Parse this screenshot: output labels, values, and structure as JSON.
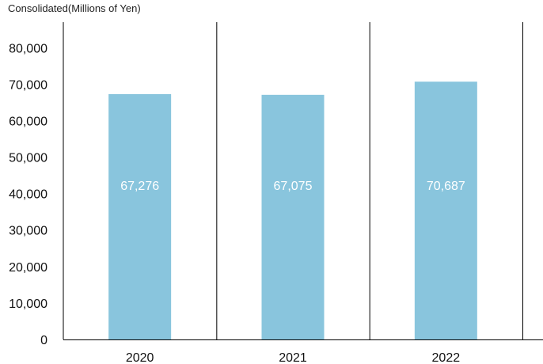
{
  "chart_data": {
    "type": "bar",
    "unit_label": "Consolidated(Millions of Yen)",
    "categories": [
      "2020",
      "2021",
      "2022"
    ],
    "values": [
      67276,
      67075,
      70687
    ],
    "data_labels": [
      "67,276",
      "67,075",
      "70,687"
    ],
    "yticks": [
      0,
      10000,
      20000,
      30000,
      40000,
      50000,
      60000,
      70000,
      80000
    ],
    "ytick_labels": [
      "0",
      "10,000",
      "20,000",
      "30,000",
      "40,000",
      "50,000",
      "60,000",
      "70,000",
      "80,000"
    ],
    "ylim": [
      0,
      87000
    ],
    "bar_color": "#89c5dd",
    "grid": false,
    "category_dividers": true
  }
}
